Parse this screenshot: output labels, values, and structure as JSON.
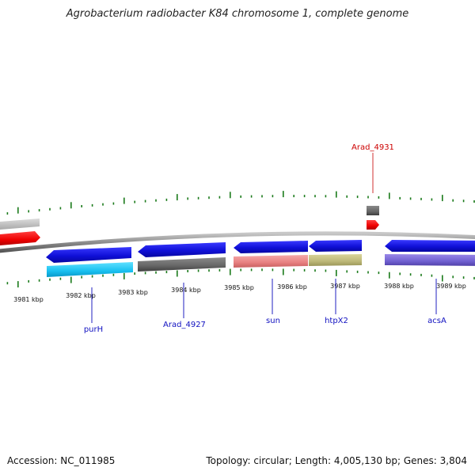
{
  "title": "Agrobacterium radiobacter K84 chromosome 1, complete genome",
  "footer": {
    "accession": "Accession: NC_011985",
    "topology": "Topology: circular; Length: 4,005,130 bp; Genes: 3,804"
  },
  "colors": {
    "backbone": "#8a8a8a",
    "tick": "#1a7a1a",
    "gene_label": "#1010c0",
    "highlight_label": "#cc0000",
    "label_leader": "#2020c0",
    "highlight_leader": "#d03030"
  },
  "kbp_ticks": [
    {
      "label": "3981 kbp"
    },
    {
      "label": "3982 kbp"
    },
    {
      "label": "3983 kbp"
    },
    {
      "label": "3984 kbp"
    },
    {
      "label": "3985 kbp"
    },
    {
      "label": "3986 kbp"
    },
    {
      "label": "3987 kbp"
    },
    {
      "label": "3988 kbp"
    },
    {
      "label": "3989 kbp"
    }
  ],
  "gene_labels": [
    {
      "name": "purH"
    },
    {
      "name": "Arad_4927"
    },
    {
      "name": "sun"
    },
    {
      "name": "htpX2"
    },
    {
      "name": "acsA"
    }
  ],
  "highlight_gene": {
    "name": "Arad_4931"
  }
}
